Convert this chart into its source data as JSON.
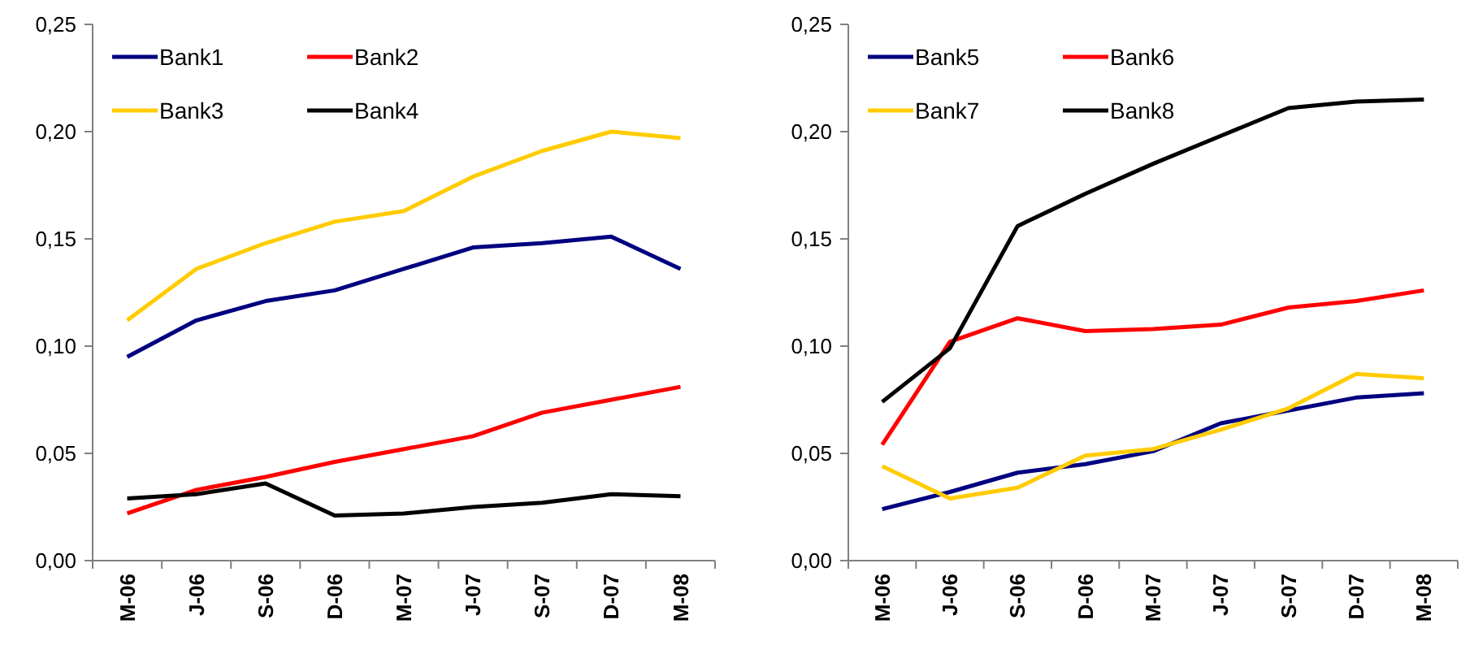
{
  "chart_data": [
    {
      "type": "line",
      "categories": [
        "M-06",
        "J-06",
        "S-06",
        "D-06",
        "M-07",
        "J-07",
        "S-07",
        "D-07",
        "M-08"
      ],
      "ylim": [
        0,
        0.25
      ],
      "yticks": [
        {
          "value": 0,
          "label": "0,00"
        },
        {
          "value": 0.05,
          "label": "0,05"
        },
        {
          "value": 0.1,
          "label": "0,10"
        },
        {
          "value": 0.15,
          "label": "0,15"
        },
        {
          "value": 0.2,
          "label": "0,20"
        },
        {
          "value": 0.25,
          "label": "0,25"
        }
      ],
      "legend": "top left",
      "marker": "none",
      "line_style": "solid",
      "series": [
        {
          "name": "Bank1",
          "color": "#000080",
          "values": [
            0.095,
            0.112,
            0.121,
            0.126,
            0.136,
            0.146,
            0.148,
            0.151,
            0.136
          ]
        },
        {
          "name": "Bank2",
          "color": "#ff0000",
          "values": [
            0.022,
            0.033,
            0.039,
            0.046,
            0.052,
            0.058,
            0.069,
            0.075,
            0.081
          ]
        },
        {
          "name": "Bank3",
          "color": "#ffcc00",
          "values": [
            0.112,
            0.136,
            0.148,
            0.158,
            0.163,
            0.179,
            0.191,
            0.2,
            0.197
          ]
        },
        {
          "name": "Bank4",
          "color": "#000000",
          "values": [
            0.029,
            0.031,
            0.036,
            0.021,
            0.022,
            0.025,
            0.027,
            0.031,
            0.03
          ]
        }
      ]
    },
    {
      "type": "line",
      "categories": [
        "M-06",
        "J-06",
        "S-06",
        "D-06",
        "M-07",
        "J-07",
        "S-07",
        "D-07",
        "M-08"
      ],
      "ylim": [
        0,
        0.25
      ],
      "yticks": [
        {
          "value": 0,
          "label": "0,00"
        },
        {
          "value": 0.05,
          "label": "0,05"
        },
        {
          "value": 0.1,
          "label": "0,10"
        },
        {
          "value": 0.15,
          "label": "0,15"
        },
        {
          "value": 0.2,
          "label": "0,20"
        },
        {
          "value": 0.25,
          "label": "0,25"
        }
      ],
      "legend": "top left",
      "marker": "none",
      "line_style": "solid",
      "series": [
        {
          "name": "Bank5",
          "color": "#000080",
          "values": [
            0.024,
            0.032,
            0.041,
            0.045,
            0.051,
            0.064,
            0.07,
            0.076,
            0.078
          ]
        },
        {
          "name": "Bank6",
          "color": "#ff0000",
          "values": [
            0.054,
            0.102,
            0.113,
            0.107,
            0.108,
            0.11,
            0.118,
            0.121,
            0.126
          ]
        },
        {
          "name": "Bank7",
          "color": "#ffcc00",
          "values": [
            0.044,
            0.029,
            0.034,
            0.049,
            0.052,
            0.061,
            0.071,
            0.087,
            0.085
          ]
        },
        {
          "name": "Bank8",
          "color": "#000000",
          "values": [
            0.074,
            0.099,
            0.156,
            0.171,
            0.185,
            0.198,
            0.211,
            0.214,
            0.215
          ]
        }
      ]
    }
  ]
}
